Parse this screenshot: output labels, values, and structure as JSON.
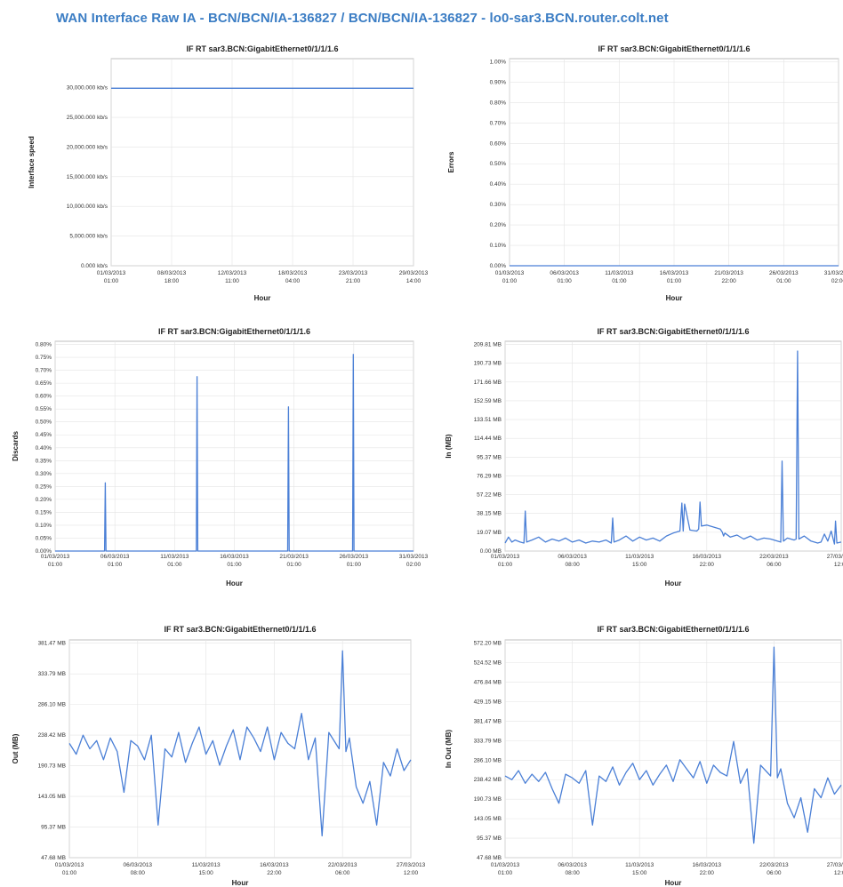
{
  "page": {
    "title": "WAN Interface Raw IA - BCN/BCN/IA-136827 / BCN/BCN/IA-136827 - lo0-sar3.BCN.router.colt.net",
    "accent": "#3b7dc4"
  },
  "chart_data": [
    {
      "id": "c1",
      "type": "line",
      "title": "IF RT sar3.BCN:GigabitEthernet0/1/1/1.6",
      "ylabel": "Interface speed",
      "xlabel": "Hour",
      "y_ticks": [
        "0.000 kb/s",
        "5,000.000 kb/s",
        "10,000.000 kb/s",
        "15,000.000 kb/s",
        "20,000.000 kb/s",
        "25,000.000 kb/s",
        "30,000.000 kb/s"
      ],
      "x_ticks": [
        [
          "01/03/2013",
          "01:00"
        ],
        [
          "08/03/2013",
          "18:00"
        ],
        [
          "12/03/2013",
          "11:00"
        ],
        [
          "18/03/2013",
          "04:00"
        ],
        [
          "23/03/2013",
          "21:00"
        ],
        [
          "29/03/2013",
          "14:00"
        ]
      ],
      "ylim": [
        0,
        35000
      ],
      "grid": true,
      "x": [
        0,
        1
      ],
      "values": [
        30000,
        30000
      ]
    },
    {
      "id": "c2",
      "type": "line",
      "title": "IF RT sar3.BCN:GigabitEthernet0/1/1/1.6",
      "ylabel": "Errors",
      "xlabel": "Hour",
      "y_ticks": [
        "0.00%",
        "0.10%",
        "0.20%",
        "0.30%",
        "0.40%",
        "0.50%",
        "0.60%",
        "0.70%",
        "0.80%",
        "0.90%",
        "1.00%"
      ],
      "x_ticks": [
        [
          "01/03/2013",
          "01:00"
        ],
        [
          "06/03/2013",
          "01:00"
        ],
        [
          "11/03/2013",
          "01:00"
        ],
        [
          "16/03/2013",
          "01:00"
        ],
        [
          "21/03/2013",
          "22:00"
        ],
        [
          "26/03/2013",
          "01:00"
        ],
        [
          "31/03/2013",
          "02:00"
        ]
      ],
      "ylim": [
        0,
        1.0
      ],
      "grid": true,
      "x": [
        0,
        1
      ],
      "values": [
        0,
        0
      ]
    },
    {
      "id": "c3",
      "type": "line",
      "title": "IF RT sar3.BCN:GigabitEthernet0/1/1/1.6",
      "ylabel": "Discards",
      "xlabel": "Hour",
      "y_ticks": [
        "0.00%",
        "0.05%",
        "0.10%",
        "0.15%",
        "0.20%",
        "0.25%",
        "0.30%",
        "0.35%",
        "0.40%",
        "0.45%",
        "0.50%",
        "0.55%",
        "0.60%",
        "0.65%",
        "0.70%",
        "0.75%",
        "0.80%"
      ],
      "x_ticks": [
        [
          "01/03/2013",
          "01:00"
        ],
        [
          "06/03/2013",
          "01:00"
        ],
        [
          "11/03/2013",
          "01:00"
        ],
        [
          "16/03/2013",
          "01:00"
        ],
        [
          "21/03/2013",
          "01:00"
        ],
        [
          "26/03/2013",
          "01:00"
        ],
        [
          "31/03/2013",
          "02:00"
        ]
      ],
      "ylim": [
        0,
        0.8
      ],
      "grid": true,
      "x": [
        0,
        0.138,
        0.14,
        0.142,
        0.394,
        0.396,
        0.398,
        0.649,
        0.651,
        0.653,
        0.83,
        0.832,
        0.834,
        1
      ],
      "values": [
        0,
        0,
        0.26,
        0,
        0,
        0.665,
        0,
        0,
        0.55,
        0,
        0,
        0.75,
        0,
        0
      ]
    },
    {
      "id": "c4",
      "type": "line",
      "title": "IF RT sar3.BCN:GigabitEthernet0/1/1/1.6",
      "ylabel": "In (MB)",
      "xlabel": "Hour",
      "y_ticks": [
        "0.00 MB",
        "19.07 MB",
        "38.15 MB",
        "57.22 MB",
        "76.29 MB",
        "95.37 MB",
        "114.44 MB",
        "133.51 MB",
        "152.59 MB",
        "171.66 MB",
        "190.73 MB",
        "209.81 MB"
      ],
      "x_ticks": [
        [
          "01/03/2013",
          "01:00"
        ],
        [
          "06/03/2013",
          "08:00"
        ],
        [
          "11/03/2013",
          "15:00"
        ],
        [
          "16/03/2013",
          "22:00"
        ],
        [
          "22/03/2013",
          "06:00"
        ],
        [
          "27/03/2013",
          "12:00"
        ]
      ],
      "ylim": [
        0,
        209.81
      ],
      "grid": true,
      "x": [
        0,
        0.01,
        0.02,
        0.03,
        0.045,
        0.056,
        0.06,
        0.064,
        0.08,
        0.1,
        0.12,
        0.14,
        0.16,
        0.18,
        0.2,
        0.22,
        0.24,
        0.26,
        0.28,
        0.3,
        0.316,
        0.32,
        0.324,
        0.34,
        0.36,
        0.38,
        0.4,
        0.42,
        0.44,
        0.46,
        0.48,
        0.5,
        0.52,
        0.526,
        0.53,
        0.534,
        0.55,
        0.57,
        0.576,
        0.58,
        0.584,
        0.6,
        0.62,
        0.64,
        0.646,
        0.65,
        0.654,
        0.67,
        0.69,
        0.71,
        0.73,
        0.75,
        0.77,
        0.79,
        0.81,
        0.82,
        0.824,
        0.828,
        0.84,
        0.86,
        0.866,
        0.87,
        0.874,
        0.89,
        0.91,
        0.93,
        0.94,
        0.95,
        0.96,
        0.97,
        0.98,
        0.983,
        0.987,
        1
      ],
      "values": [
        8,
        14,
        9,
        11,
        9,
        8,
        40,
        9,
        11,
        14,
        9,
        12,
        10,
        13,
        9,
        11,
        8,
        10,
        9,
        11,
        8,
        33,
        9,
        11,
        15,
        10,
        14,
        11,
        13,
        10,
        15,
        18,
        20,
        48,
        20,
        47,
        21,
        20,
        22,
        49,
        25,
        26,
        24,
        22,
        19,
        15,
        18,
        14,
        16,
        12,
        15,
        11,
        13,
        12,
        10,
        9,
        90,
        10,
        13,
        11,
        12,
        200,
        12,
        15,
        10,
        8,
        9,
        17,
        10,
        20,
        7,
        30,
        8,
        9
      ]
    },
    {
      "id": "c5",
      "type": "line",
      "title": "IF RT sar3.BCN:GigabitEthernet0/1/1/1.6",
      "ylabel": "Out (MB)",
      "xlabel": "Hour",
      "y_ticks": [
        "47.68 MB",
        "95.37 MB",
        "143.05 MB",
        "190.73 MB",
        "238.42 MB",
        "286.10 MB",
        "333.79 MB",
        "381.47 MB"
      ],
      "x_ticks": [
        [
          "01/03/2013",
          "01:00"
        ],
        [
          "06/03/2013",
          "08:00"
        ],
        [
          "11/03/2013",
          "15:00"
        ],
        [
          "16/03/2013",
          "22:00"
        ],
        [
          "22/03/2013",
          "06:00"
        ],
        [
          "27/03/2013",
          "12:00"
        ]
      ],
      "ylim": [
        0,
        400
      ],
      "grid": true,
      "x": [
        0,
        0.02,
        0.04,
        0.06,
        0.08,
        0.1,
        0.12,
        0.14,
        0.16,
        0.18,
        0.2,
        0.22,
        0.24,
        0.26,
        0.28,
        0.3,
        0.32,
        0.34,
        0.36,
        0.38,
        0.4,
        0.42,
        0.44,
        0.46,
        0.48,
        0.5,
        0.52,
        0.54,
        0.56,
        0.58,
        0.6,
        0.62,
        0.64,
        0.66,
        0.68,
        0.7,
        0.72,
        0.74,
        0.76,
        0.78,
        0.79,
        0.8,
        0.81,
        0.82,
        0.84,
        0.86,
        0.88,
        0.9,
        0.92,
        0.94,
        0.96,
        0.98,
        1
      ],
      "values": [
        210,
        190,
        225,
        200,
        215,
        180,
        220,
        195,
        120,
        215,
        205,
        180,
        225,
        60,
        200,
        185,
        230,
        175,
        210,
        240,
        190,
        215,
        170,
        205,
        235,
        180,
        240,
        220,
        195,
        240,
        180,
        230,
        210,
        200,
        265,
        180,
        220,
        40,
        230,
        210,
        200,
        380,
        195,
        220,
        130,
        100,
        140,
        60,
        175,
        150,
        200,
        160,
        180
      ]
    },
    {
      "id": "c6",
      "type": "line",
      "title": "IF RT sar3.BCN:GigabitEthernet0/1/1/1.6",
      "ylabel": "In Out (MB)",
      "xlabel": "Hour",
      "y_ticks": [
        "47.68 MB",
        "95.37 MB",
        "143.05 MB",
        "190.73 MB",
        "238.42 MB",
        "286.10 MB",
        "333.79 MB",
        "381.47 MB",
        "429.15 MB",
        "476.84 MB",
        "524.52 MB",
        "572.20 MB"
      ],
      "x_ticks": [
        [
          "01/03/2013",
          "01:00"
        ],
        [
          "06/03/2013",
          "08:00"
        ],
        [
          "11/03/2013",
          "15:00"
        ],
        [
          "16/03/2013",
          "22:00"
        ],
        [
          "22/03/2013",
          "06:00"
        ],
        [
          "27/03/2013",
          "12:00"
        ]
      ],
      "ylim": [
        0,
        600
      ],
      "grid": true,
      "x": [
        0,
        0.02,
        0.04,
        0.06,
        0.08,
        0.1,
        0.12,
        0.14,
        0.16,
        0.18,
        0.2,
        0.22,
        0.24,
        0.26,
        0.28,
        0.3,
        0.32,
        0.34,
        0.36,
        0.38,
        0.4,
        0.42,
        0.44,
        0.46,
        0.48,
        0.5,
        0.52,
        0.54,
        0.56,
        0.58,
        0.6,
        0.62,
        0.64,
        0.66,
        0.68,
        0.7,
        0.72,
        0.74,
        0.76,
        0.78,
        0.79,
        0.8,
        0.81,
        0.82,
        0.84,
        0.86,
        0.88,
        0.9,
        0.92,
        0.94,
        0.96,
        0.98,
        1
      ],
      "values": [
        225,
        215,
        240,
        205,
        230,
        210,
        235,
        190,
        150,
        230,
        220,
        205,
        240,
        90,
        225,
        210,
        250,
        200,
        235,
        260,
        215,
        240,
        200,
        230,
        255,
        210,
        270,
        245,
        220,
        265,
        205,
        255,
        235,
        225,
        320,
        205,
        245,
        40,
        255,
        235,
        225,
        580,
        220,
        245,
        150,
        110,
        165,
        70,
        190,
        165,
        220,
        175,
        200
      ]
    }
  ]
}
